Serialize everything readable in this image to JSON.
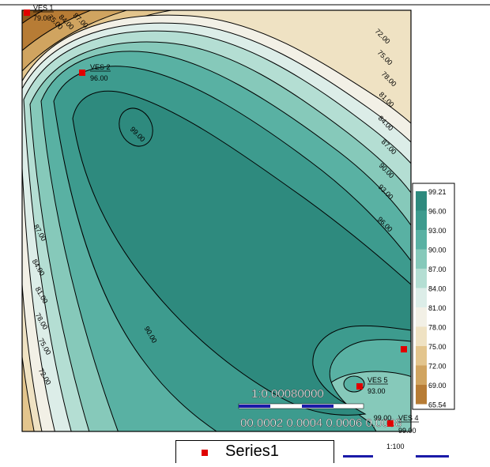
{
  "map": {
    "stations": [
      {
        "name": "VES 1",
        "value": "79.00"
      },
      {
        "name": "VES 2",
        "value": "96.00"
      },
      {
        "name": "VES 5",
        "value": "93.00"
      },
      {
        "name": "VES 4",
        "value": "99.00"
      }
    ],
    "contour_labels": [
      {
        "text": "99.00"
      },
      {
        "text": "99.00"
      },
      {
        "text": "96.00"
      },
      {
        "text": "93.00"
      },
      {
        "text": "90.00"
      },
      {
        "text": "87.00"
      },
      {
        "text": "84.00"
      },
      {
        "text": "81.00"
      },
      {
        "text": "78.00"
      },
      {
        "text": "75.00"
      },
      {
        "text": "72.00"
      },
      {
        "text": "87.00"
      },
      {
        "text": "84.00"
      },
      {
        "text": "81.00"
      },
      {
        "text": "78.00"
      },
      {
        "text": "75.00"
      },
      {
        "text": "72.00"
      },
      {
        "text": "90.00"
      },
      {
        "text": "87.00"
      },
      {
        "text": "84.00"
      },
      {
        "text": "75.00"
      }
    ],
    "scale_text": "1:0.00080000",
    "scale_ticks_text": "00.0002 0.0004 0.0006 0.0008"
  },
  "colorbar": {
    "values": [
      "99.21",
      "96.00",
      "93.00",
      "90.00",
      "87.00",
      "84.00",
      "81.00",
      "78.00",
      "75.00",
      "72.00",
      "69.00",
      "65.54"
    ],
    "colors": [
      "#2e8a7e",
      "#3d9b8e",
      "#59b1a3",
      "#86c9ba",
      "#b4ded3",
      "#dcede8",
      "#f2f0e6",
      "#efe2c3",
      "#e3c58d",
      "#d0a460",
      "#b77c35",
      "#8e5a1d"
    ]
  },
  "legend": {
    "marker_color": "#e00000",
    "label": "Series1"
  },
  "scale2": {
    "label": "1:100"
  }
}
